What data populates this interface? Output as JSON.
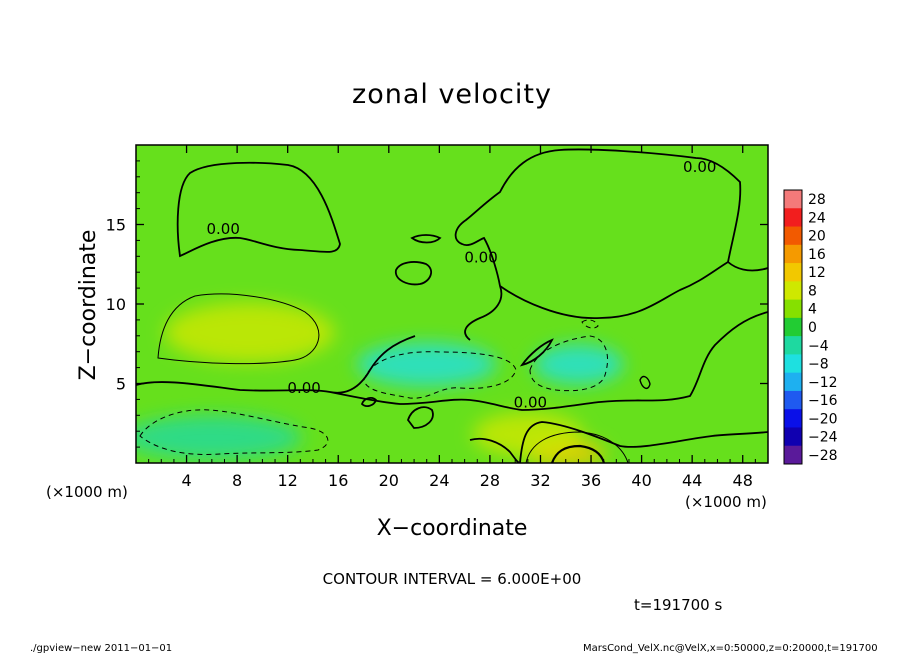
{
  "chart_data": {
    "type": "heatmap",
    "title": "zonal velocity",
    "xlabel": "X−coordinate",
    "ylabel": "Z−coordinate",
    "x_unit": "(×1000 m)",
    "y_unit": "(×1000 m)",
    "xlim": [
      0,
      50
    ],
    "ylim": [
      0,
      20
    ],
    "x_ticks": [
      4,
      8,
      12,
      16,
      20,
      24,
      28,
      32,
      36,
      40,
      44,
      48
    ],
    "y_ticks": [
      5,
      10,
      15
    ],
    "colorbar_levels": [
      28,
      24,
      20,
      16,
      12,
      8,
      4,
      0,
      -4,
      -8,
      -12,
      -16,
      -20,
      -24,
      -28
    ],
    "colorbar_labels": [
      "28",
      "24",
      "20",
      "16",
      "12",
      "8",
      "4",
      "0",
      "−4",
      "−8",
      "−12",
      "−16",
      "−20",
      "−24",
      "−28"
    ],
    "colorbar_colors": [
      "#f47a7a",
      "#f21e1e",
      "#f25a00",
      "#f59a00",
      "#f2c800",
      "#cfe800",
      "#86e000",
      "#22cc33",
      "#1ed9a0",
      "#1ee0e0",
      "#1eb0f0",
      "#1f5af0",
      "#0a10e8",
      "#1000b0",
      "#5a1a9a"
    ],
    "contour_interval": "CONTOUR INTERVAL = 6.000E+00",
    "contour_labels": [
      {
        "text": "0.00",
        "x": 6.9,
        "y": 14.4
      },
      {
        "text": "0.00",
        "x": 44.6,
        "y": 18.3
      },
      {
        "text": "0.00",
        "x": 27.3,
        "y": 12.6
      },
      {
        "text": "0.00",
        "x": 13.3,
        "y": 4.4
      },
      {
        "text": "0.00",
        "x": 31.2,
        "y": 3.5
      }
    ],
    "features": [
      {
        "name": "positive-west",
        "x": 9,
        "y": 8.2,
        "value": 9
      },
      {
        "name": "positive-bottom",
        "x": 34,
        "y": 0.6,
        "value": 12
      },
      {
        "name": "positive-south",
        "x": 31,
        "y": 1.8,
        "value": 6
      },
      {
        "name": "negative-midleft",
        "x": 23,
        "y": 6.2,
        "value": -7
      },
      {
        "name": "negative-midright",
        "x": 35,
        "y": 6.2,
        "value": -7
      },
      {
        "name": "negative-bottomleft",
        "x": 6,
        "y": 1.6,
        "value": -6
      }
    ]
  },
  "footer": {
    "time": "t=191700 s",
    "program": "./gpview−new   2011−01−01",
    "source": "MarsCond_VelX.nc@VelX,x=0:50000,z=0:20000,t=191700"
  }
}
